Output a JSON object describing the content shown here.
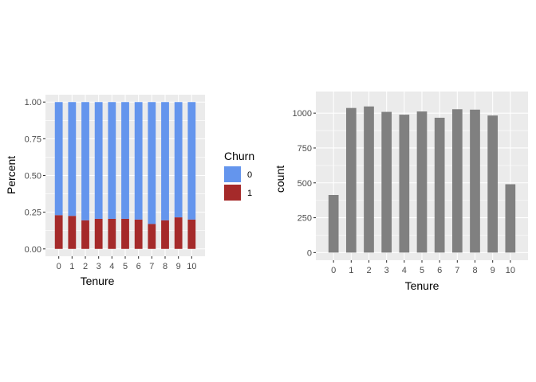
{
  "chart_data": [
    {
      "type": "bar",
      "stacked": true,
      "position": "fill",
      "xlabel": "Tenure",
      "ylabel": "Percent",
      "categories": [
        "0",
        "1",
        "2",
        "3",
        "4",
        "5",
        "6",
        "7",
        "8",
        "9",
        "10"
      ],
      "ylim": [
        0,
        1
      ],
      "yticks": [
        "0.00",
        "0.25",
        "0.50",
        "0.75",
        "1.00"
      ],
      "grid": true,
      "legend": {
        "title": "Churn",
        "position": "right"
      },
      "series": [
        {
          "name": "0",
          "color": "#6495ED",
          "values": [
            0.77,
            0.775,
            0.805,
            0.795,
            0.795,
            0.795,
            0.8,
            0.83,
            0.805,
            0.785,
            0.8
          ]
        },
        {
          "name": "1",
          "color": "#A52A2A",
          "values": [
            0.23,
            0.225,
            0.195,
            0.205,
            0.205,
            0.205,
            0.2,
            0.17,
            0.195,
            0.215,
            0.2
          ]
        }
      ]
    },
    {
      "type": "bar",
      "xlabel": "Tenure",
      "ylabel": "count",
      "categories": [
        "0",
        "1",
        "2",
        "3",
        "4",
        "5",
        "6",
        "7",
        "8",
        "9",
        "10"
      ],
      "values": [
        413,
        1037,
        1048,
        1009,
        989,
        1012,
        967,
        1028,
        1025,
        983,
        490
      ],
      "ylim": [
        0,
        1100
      ],
      "yticks": [
        "0",
        "250",
        "500",
        "750",
        "1000"
      ],
      "grid": true,
      "color": "#808080"
    }
  ]
}
